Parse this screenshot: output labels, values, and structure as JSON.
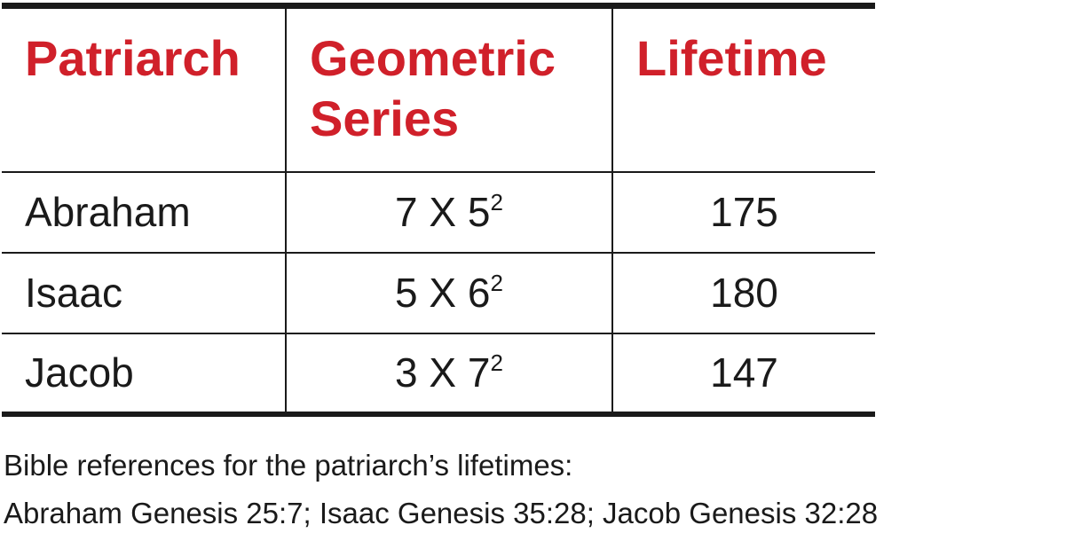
{
  "table": {
    "header": [
      "Patriarch",
      "Geometric Series",
      "Lifetime"
    ],
    "rows": [
      [
        "Abraham",
        {
          "text": "7 X 5",
          "sup": "2"
        },
        "175"
      ],
      [
        "Isaac",
        {
          "text": "5 X 6",
          "sup": "2"
        },
        "180"
      ],
      [
        "Jacob",
        {
          "text": "3 X 7",
          "sup": "2"
        },
        "147"
      ]
    ]
  },
  "footnote": [
    "Bible references for the patriarch’s lifetimes:",
    "Abraham Genesis 25:7; Isaac Genesis 35:28; Jacob Genesis 32:28"
  ]
}
